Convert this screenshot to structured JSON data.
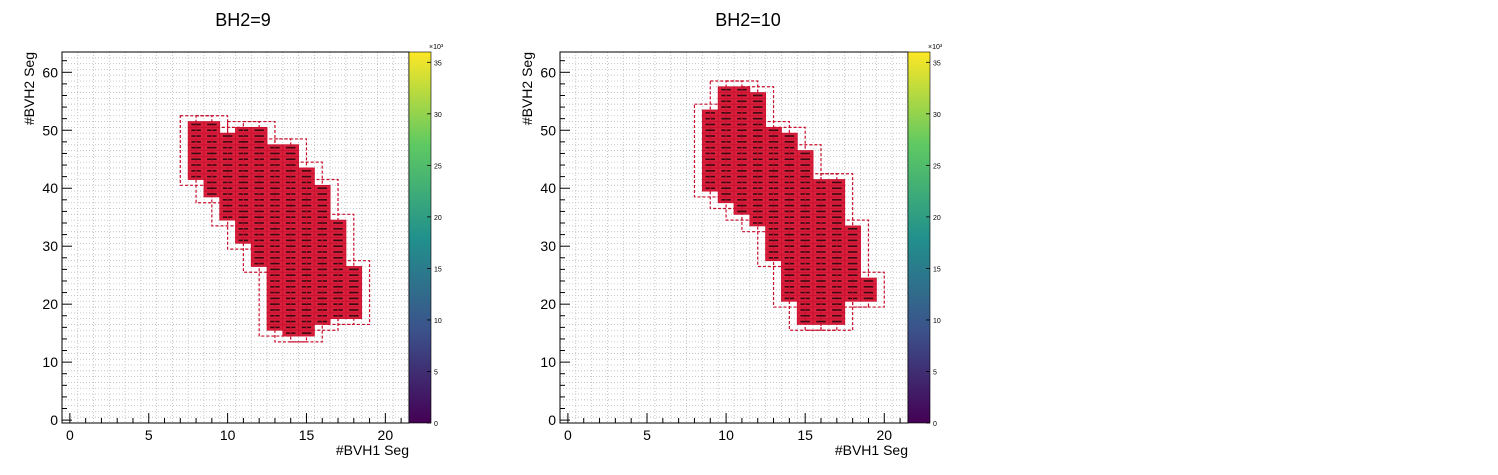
{
  "canvas": {
    "background": "#ffffff"
  },
  "colors": {
    "cell_fill": "#d81f3c",
    "cell_box": "#c8102e",
    "cell_dash": "#ffffff",
    "grid_dot": "#bbbbbb",
    "axis": "#000000",
    "palette": [
      "#440154",
      "#3b528b",
      "#21918c",
      "#5ec962",
      "#fde725"
    ]
  },
  "chart_data": [
    {
      "type": "heatmap",
      "title": "BH2=9",
      "xlabel": "#BVH1 Seg",
      "ylabel": "#BVH2 Seg",
      "xlim": [
        -0.5,
        21.5
      ],
      "ylim": [
        -0.5,
        63.5
      ],
      "x_ticks": [
        "0",
        "5",
        "10",
        "15",
        "20"
      ],
      "y_ticks": [
        "0",
        "10",
        "20",
        "30",
        "40",
        "50",
        "60"
      ],
      "z_ticks": [
        "0",
        "5",
        "10",
        "15",
        "20",
        "25",
        "30",
        "35"
      ],
      "z_exponent_label": "×10³",
      "zlim": [
        0,
        36000
      ],
      "columns": [
        {
          "x": 8,
          "ymin": 42,
          "ymax": 51
        },
        {
          "x": 9,
          "ymin": 39,
          "ymax": 51
        },
        {
          "x": 10,
          "ymin": 35,
          "ymax": 49
        },
        {
          "x": 11,
          "ymin": 31,
          "ymax": 50
        },
        {
          "x": 12,
          "ymin": 27,
          "ymax": 50
        },
        {
          "x": 13,
          "ymin": 16,
          "ymax": 47
        },
        {
          "x": 14,
          "ymin": 15,
          "ymax": 47
        },
        {
          "x": 15,
          "ymin": 15,
          "ymax": 43
        },
        {
          "x": 16,
          "ymin": 17,
          "ymax": 40
        },
        {
          "x": 17,
          "ymin": 18,
          "ymax": 34
        },
        {
          "x": 18,
          "ymin": 18,
          "ymax": 26
        }
      ]
    },
    {
      "type": "heatmap",
      "title": "BH2=10",
      "xlabel": "#BVH1 Seg",
      "ylabel": "#BVH2 Seg",
      "xlim": [
        -0.5,
        21.5
      ],
      "ylim": [
        -0.5,
        63.5
      ],
      "x_ticks": [
        "0",
        "5",
        "10",
        "15",
        "20"
      ],
      "y_ticks": [
        "0",
        "10",
        "20",
        "30",
        "40",
        "50",
        "60"
      ],
      "z_ticks": [
        "0",
        "5",
        "10",
        "15",
        "20",
        "25",
        "30",
        "35"
      ],
      "z_exponent_label": "×10³",
      "zlim": [
        0,
        36000
      ],
      "columns": [
        {
          "x": 9,
          "ymin": 40,
          "ymax": 53
        },
        {
          "x": 10,
          "ymin": 38,
          "ymax": 57
        },
        {
          "x": 11,
          "ymin": 36,
          "ymax": 57
        },
        {
          "x": 12,
          "ymin": 34,
          "ymax": 56
        },
        {
          "x": 13,
          "ymin": 28,
          "ymax": 50
        },
        {
          "x": 14,
          "ymin": 21,
          "ymax": 49
        },
        {
          "x": 15,
          "ymin": 17,
          "ymax": 46
        },
        {
          "x": 16,
          "ymin": 17,
          "ymax": 41
        },
        {
          "x": 17,
          "ymin": 17,
          "ymax": 41
        },
        {
          "x": 18,
          "ymin": 21,
          "ymax": 33
        },
        {
          "x": 19,
          "ymin": 21,
          "ymax": 24
        }
      ]
    }
  ]
}
